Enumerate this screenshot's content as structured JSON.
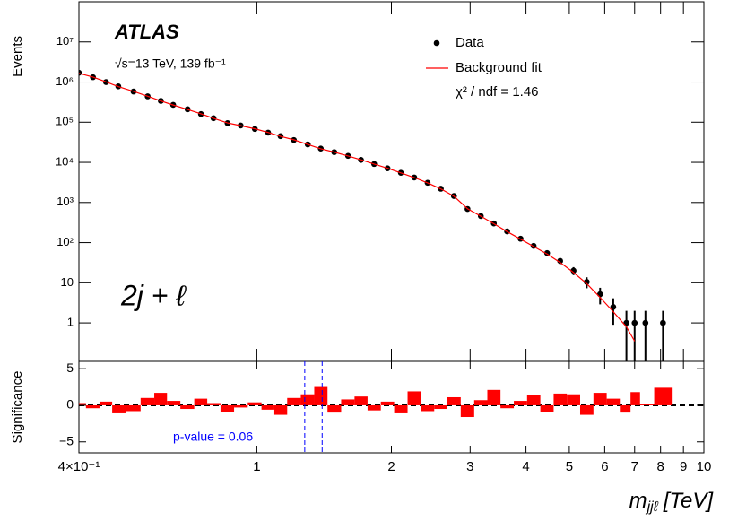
{
  "chart_data": [
    {
      "type": "scatter",
      "title": "ATLAS",
      "subtitle": "√s=13 TeV,  139 fb⁻¹",
      "annotation": "2j + ℓ",
      "fit_quality": "χ² / ndf = 1.46",
      "ylabel": "Events",
      "xlog": true,
      "ylog": true,
      "xlim": [
        0.4,
        10
      ],
      "ylim": [
        0.11,
        100000000
      ],
      "yticks": [
        1,
        10,
        {
          "value": 100,
          "label": "10²"
        },
        {
          "value": 1000,
          "label": "10³"
        },
        {
          "value": 10000,
          "label": "10⁴"
        },
        {
          "value": 100000,
          "label": "10⁵"
        },
        {
          "value": 1000000,
          "label": "10⁶"
        },
        {
          "value": 10000000,
          "label": "10⁷"
        }
      ],
      "legend": "top-right",
      "x": [
        0.4,
        0.43,
        0.46,
        0.49,
        0.53,
        0.57,
        0.61,
        0.65,
        0.7,
        0.75,
        0.8,
        0.86,
        0.92,
        0.99,
        1.06,
        1.13,
        1.21,
        1.3,
        1.39,
        1.49,
        1.6,
        1.71,
        1.83,
        1.96,
        2.1,
        2.25,
        2.41,
        2.58,
        2.76,
        2.96,
        3.17,
        3.39,
        3.63,
        3.89,
        4.16,
        4.46,
        4.77,
        5.11,
        5.47,
        5.86,
        6.27,
        6.71,
        7.0,
        7.4,
        8.1
      ],
      "series": [
        {
          "name": "Data",
          "color": "#000000",
          "kind": "points",
          "values": [
            1700000,
            1320000,
            1000000,
            780000,
            580000,
            440000,
            340000,
            270000,
            210000,
            160000,
            126000,
            95000,
            83000,
            68000,
            55000,
            45000,
            36000,
            28000,
            22000,
            18000,
            14500,
            11500,
            9100,
            7100,
            5500,
            4200,
            3100,
            2200,
            1450,
            690,
            460,
            300,
            190,
            125,
            83,
            55,
            35,
            20,
            10.5,
            5.2,
            2.5,
            1,
            1,
            1,
            1
          ],
          "errors": [
            1300,
            1150,
            1000,
            880,
            760,
            660,
            580,
            520,
            460,
            400,
            355,
            310,
            290,
            260,
            235,
            210,
            190,
            167,
            148,
            134,
            120,
            107,
            95,
            84,
            74,
            65,
            56,
            47,
            38,
            26,
            21,
            17,
            14,
            11,
            9.1,
            7.4,
            5.9,
            4.5,
            3.2,
            2.3,
            1.6,
            1,
            1,
            1,
            1
          ]
        },
        {
          "name": "Background fit",
          "color": "#ff0000",
          "kind": "line",
          "values": [
            1650000,
            1330000,
            1010000,
            770000,
            585000,
            445000,
            338000,
            268000,
            208000,
            162000,
            125000,
            96000,
            82000,
            68500,
            55500,
            44500,
            36500,
            28000,
            21800,
            18000,
            14400,
            11600,
            9050,
            7150,
            5450,
            4180,
            3080,
            2180,
            1430,
            700,
            455,
            295,
            188,
            122,
            80,
            52,
            32,
            18,
            9.5,
            4.3,
            1.9,
            0.8,
            0.35,
            null,
            null
          ]
        }
      ]
    },
    {
      "type": "bar",
      "ylabel": "Significance",
      "xlabel": "m",
      "xlabel_sub": "jjℓ",
      "xlabel_unit": "[TeV]",
      "xlog": true,
      "xlim": [
        0.4,
        10
      ],
      "ylim": [
        -6.5,
        6
      ],
      "yticks": [
        5,
        0,
        {
          "value": -5,
          "label": "−5"
        }
      ],
      "xticks": [
        {
          "value": 0.4,
          "label": "4×10⁻¹"
        },
        1,
        2,
        3,
        4,
        5,
        6,
        7,
        8,
        9,
        10
      ],
      "x": [
        0.4,
        0.43,
        0.46,
        0.49,
        0.53,
        0.57,
        0.61,
        0.65,
        0.7,
        0.75,
        0.8,
        0.86,
        0.92,
        0.99,
        1.06,
        1.13,
        1.21,
        1.3,
        1.39,
        1.49,
        1.6,
        1.71,
        1.83,
        1.96,
        2.1,
        2.25,
        2.41,
        2.58,
        2.76,
        2.96,
        3.17,
        3.39,
        3.63,
        3.89,
        4.16,
        4.46,
        4.77,
        5.11,
        5.47,
        5.86,
        6.27,
        6.71,
        7.0,
        7.4,
        8.1
      ],
      "color": "#ff0000",
      "values": [
        0.3,
        -0.4,
        0.5,
        -1.1,
        -0.8,
        1.0,
        1.7,
        0.6,
        -0.5,
        0.9,
        0.3,
        -0.9,
        -0.3,
        0.4,
        -0.6,
        -1.3,
        1.0,
        1.5,
        2.5,
        -1.0,
        0.8,
        1.2,
        -0.7,
        0.5,
        -1.1,
        1.9,
        -0.8,
        -0.5,
        1.1,
        -1.6,
        0.7,
        2.1,
        -0.4,
        0.6,
        1.4,
        -0.9,
        1.6,
        1.5,
        -1.3,
        1.7,
        0.9,
        -1.0,
        1.8,
        0.2,
        2.4
      ],
      "window": [
        1.28,
        1.4
      ],
      "window_color": "#0000ff",
      "annotation": "p-value = 0.06"
    }
  ]
}
